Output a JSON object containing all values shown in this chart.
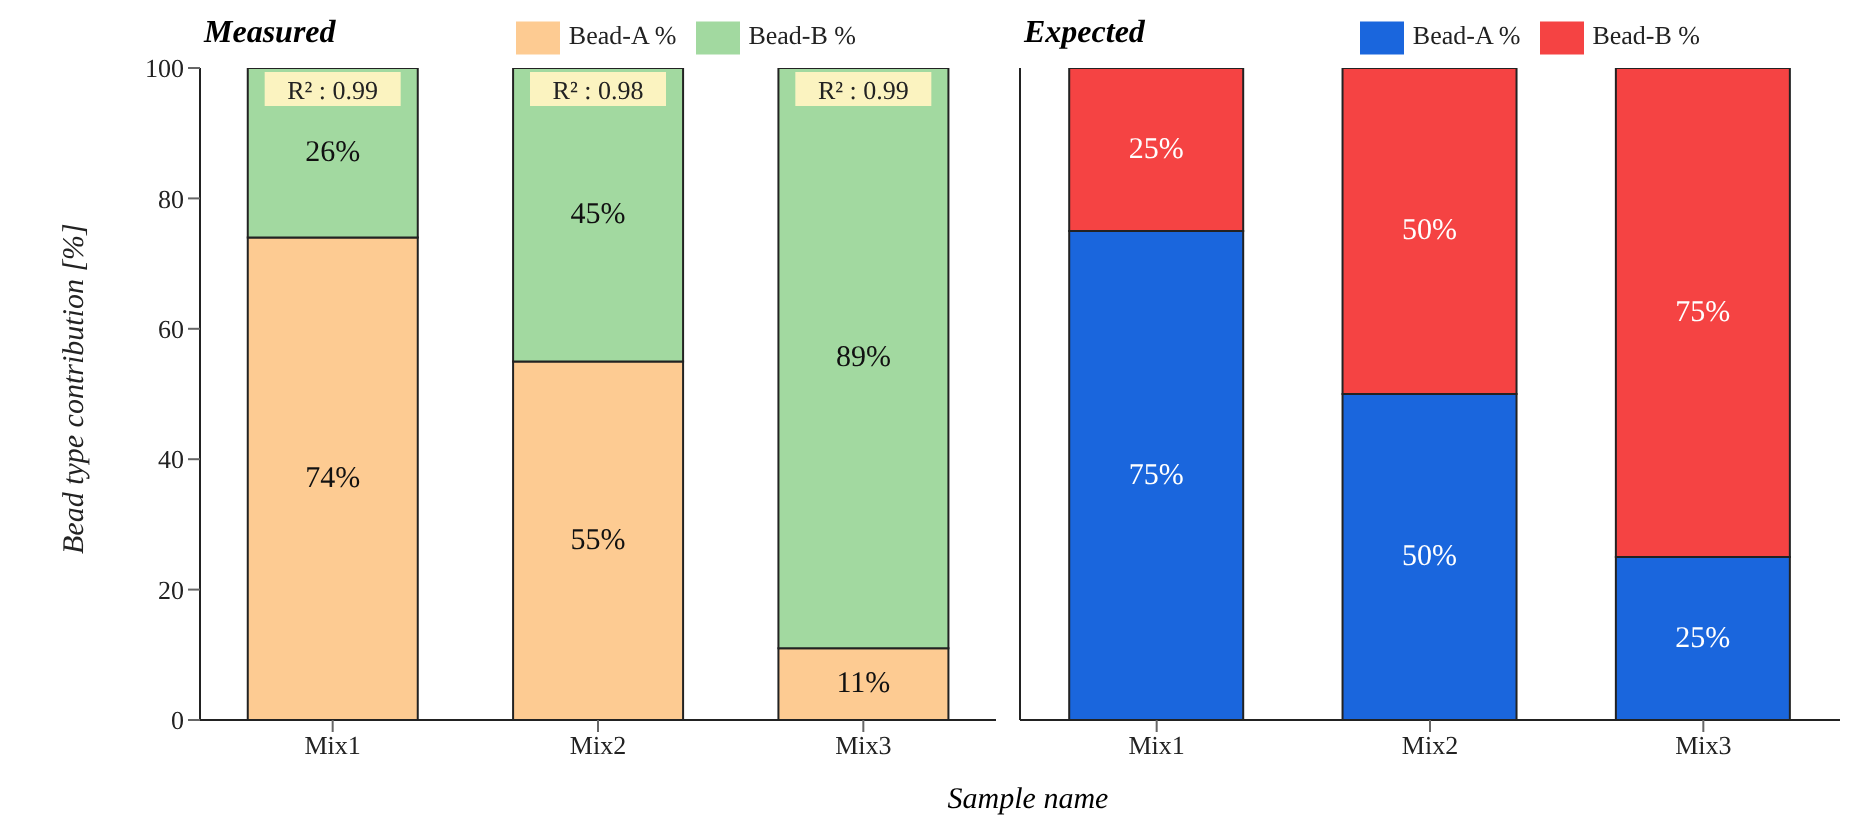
{
  "chart_data": [
    {
      "type": "bar",
      "title": "Measured",
      "ylabel": "Bead type contribution [%]",
      "xlabel": "Sample name",
      "categories": [
        "Mix1",
        "Mix2",
        "Mix3"
      ],
      "stacked": true,
      "legend": "top right",
      "ylim": [
        0,
        100
      ],
      "yticks": [
        0,
        20,
        40,
        60,
        80,
        100
      ],
      "series": [
        {
          "name": "Bead-A %",
          "color": "#fdcb92",
          "values": [
            74,
            55,
            11
          ],
          "value_labels": [
            "74%",
            "55%",
            "11%"
          ]
        },
        {
          "name": "Bead-B %",
          "color": "#a2d9a0",
          "values": [
            26,
            45,
            89
          ],
          "value_labels": [
            "26%",
            "45%",
            "89%"
          ]
        }
      ],
      "annotations": [
        {
          "text": "R² : 0.99",
          "x": "Mix1",
          "y": 100
        },
        {
          "text": "R² : 0.98",
          "x": "Mix2",
          "y": 100
        },
        {
          "text": "R² : 0.99",
          "x": "Mix3",
          "y": 100
        }
      ]
    },
    {
      "type": "bar",
      "title": "Expected",
      "categories": [
        "Mix1",
        "Mix2",
        "Mix3"
      ],
      "stacked": true,
      "legend": "top right",
      "ylim": [
        0,
        100
      ],
      "tick_labels": "x",
      "series": [
        {
          "name": "Bead-A %",
          "color": "#1a66dd",
          "values": [
            75,
            50,
            25
          ],
          "value_labels": [
            "75%",
            "50%",
            "25%"
          ]
        },
        {
          "name": "Bead-B %",
          "color": "#f54343",
          "values": [
            25,
            50,
            75
          ],
          "value_labels": [
            "25%",
            "50%",
            "75%"
          ]
        }
      ]
    }
  ]
}
